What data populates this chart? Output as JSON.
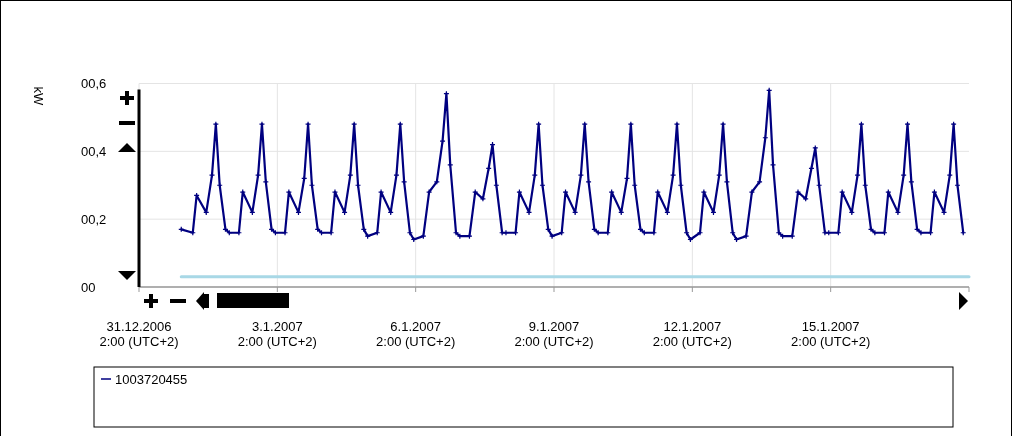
{
  "chart_data": {
    "type": "line",
    "ylabel": "kW",
    "xlim": [
      "2006-12-31T02:00",
      "2007-01-18T02:00"
    ],
    "xticks": [
      {
        "value": "2006-12-31T02:00",
        "label": "31.12.2006\n2:00 (UTC+2)"
      },
      {
        "value": "2007-01-03T02:00",
        "label": "3.1.2007\n2:00 (UTC+2)"
      },
      {
        "value": "2007-01-06T02:00",
        "label": "6.1.2007\n2:00 (UTC+2)"
      },
      {
        "value": "2007-01-09T02:00",
        "label": "9.1.2007\n2:00 (UTC+2)"
      },
      {
        "value": "2007-01-12T02:00",
        "label": "12.1.2007\n2:00 (UTC+2)"
      },
      {
        "value": "2007-01-15T02:00",
        "label": "15.1.2007\n2:00 (UTC+2)"
      }
    ],
    "ylim": [
      0,
      0.6
    ],
    "yticks": [
      {
        "value": 0,
        "label": "00"
      },
      {
        "value": 0.2,
        "label": "00,2"
      },
      {
        "value": 0.4,
        "label": "00,4"
      },
      {
        "value": 0.6,
        "label": "00,6"
      }
    ],
    "grid": true,
    "legend": "bottom",
    "marker": "cross",
    "line_style": "solid",
    "series": [
      {
        "name": "1003720455",
        "color": "#000080",
        "x": [
          "2007-01-01T00:00",
          "2007-01-01T06:00",
          "2007-01-01T08:00",
          "2007-01-01T13:00",
          "2007-01-01T16:00",
          "2007-01-01T18:00",
          "2007-01-01T20:00",
          "2007-01-01T23:00",
          "2007-01-02T01:00",
          "2007-01-02T06:00",
          "2007-01-02T08:00",
          "2007-01-02T13:00",
          "2007-01-02T16:00",
          "2007-01-02T18:00",
          "2007-01-02T20:00",
          "2007-01-02T23:00",
          "2007-01-03T01:00",
          "2007-01-03T06:00",
          "2007-01-03T08:00",
          "2007-01-03T13:00",
          "2007-01-03T16:00",
          "2007-01-03T18:00",
          "2007-01-03T20:00",
          "2007-01-03T23:00",
          "2007-01-04T01:00",
          "2007-01-04T06:00",
          "2007-01-04T08:00",
          "2007-01-04T13:00",
          "2007-01-04T16:00",
          "2007-01-04T18:00",
          "2007-01-04T20:00",
          "2007-01-04T23:00",
          "2007-01-05T01:00",
          "2007-01-05T06:00",
          "2007-01-05T08:00",
          "2007-01-05T13:00",
          "2007-01-05T16:00",
          "2007-01-05T18:00",
          "2007-01-05T20:00",
          "2007-01-05T23:00",
          "2007-01-06T01:00",
          "2007-01-06T06:00",
          "2007-01-06T09:00",
          "2007-01-06T13:00",
          "2007-01-06T16:00",
          "2007-01-06T18:00",
          "2007-01-06T20:00",
          "2007-01-06T23:00",
          "2007-01-07T01:00",
          "2007-01-07T06:00",
          "2007-01-07T09:00",
          "2007-01-07T13:00",
          "2007-01-07T16:00",
          "2007-01-07T18:00",
          "2007-01-07T20:00",
          "2007-01-07T23:00",
          "2007-01-08T01:00",
          "2007-01-08T06:00",
          "2007-01-08T08:00",
          "2007-01-08T13:00",
          "2007-01-08T16:00",
          "2007-01-08T18:00",
          "2007-01-08T20:00",
          "2007-01-08T23:00",
          "2007-01-09T01:00",
          "2007-01-09T06:00",
          "2007-01-09T08:00",
          "2007-01-09T13:00",
          "2007-01-09T16:00",
          "2007-01-09T18:00",
          "2007-01-09T20:00",
          "2007-01-09T23:00",
          "2007-01-10T01:00",
          "2007-01-10T06:00",
          "2007-01-10T08:00",
          "2007-01-10T13:00",
          "2007-01-10T16:00",
          "2007-01-10T18:00",
          "2007-01-10T20:00",
          "2007-01-10T23:00",
          "2007-01-11T01:00",
          "2007-01-11T06:00",
          "2007-01-11T08:00",
          "2007-01-11T13:00",
          "2007-01-11T16:00",
          "2007-01-11T18:00",
          "2007-01-11T20:00",
          "2007-01-11T23:00",
          "2007-01-12T01:00",
          "2007-01-12T06:00",
          "2007-01-12T08:00",
          "2007-01-12T13:00",
          "2007-01-12T16:00",
          "2007-01-12T18:00",
          "2007-01-12T20:00",
          "2007-01-12T23:00",
          "2007-01-13T01:00",
          "2007-01-13T06:00",
          "2007-01-13T09:00",
          "2007-01-13T13:00",
          "2007-01-13T16:00",
          "2007-01-13T18:00",
          "2007-01-13T20:00",
          "2007-01-13T23:00",
          "2007-01-14T01:00",
          "2007-01-14T06:00",
          "2007-01-14T09:00",
          "2007-01-14T13:00",
          "2007-01-14T16:00",
          "2007-01-14T18:00",
          "2007-01-14T20:00",
          "2007-01-14T23:00",
          "2007-01-15T01:00",
          "2007-01-15T06:00",
          "2007-01-15T08:00",
          "2007-01-15T13:00",
          "2007-01-15T16:00",
          "2007-01-15T18:00",
          "2007-01-15T20:00",
          "2007-01-15T23:00",
          "2007-01-16T01:00",
          "2007-01-16T06:00",
          "2007-01-16T08:00",
          "2007-01-16T13:00",
          "2007-01-16T16:00",
          "2007-01-16T18:00",
          "2007-01-16T20:00",
          "2007-01-16T23:00",
          "2007-01-17T01:00",
          "2007-01-17T06:00",
          "2007-01-17T08:00",
          "2007-01-17T13:00",
          "2007-01-17T16:00",
          "2007-01-17T18:00",
          "2007-01-17T20:00",
          "2007-01-17T23:00"
        ],
        "values": [
          0.17,
          0.16,
          0.27,
          0.22,
          0.33,
          0.48,
          0.3,
          0.17,
          0.16,
          0.16,
          0.28,
          0.22,
          0.33,
          0.48,
          0.31,
          0.17,
          0.16,
          0.16,
          0.28,
          0.22,
          0.32,
          0.48,
          0.3,
          0.17,
          0.16,
          0.16,
          0.28,
          0.22,
          0.33,
          0.48,
          0.3,
          0.17,
          0.15,
          0.16,
          0.28,
          0.22,
          0.33,
          0.48,
          0.31,
          0.16,
          0.14,
          0.15,
          0.28,
          0.31,
          0.43,
          0.57,
          0.36,
          0.16,
          0.15,
          0.15,
          0.28,
          0.26,
          0.35,
          0.42,
          0.3,
          0.16,
          0.16,
          0.16,
          0.28,
          0.22,
          0.33,
          0.48,
          0.3,
          0.17,
          0.15,
          0.16,
          0.28,
          0.22,
          0.33,
          0.48,
          0.31,
          0.17,
          0.16,
          0.16,
          0.28,
          0.22,
          0.32,
          0.48,
          0.3,
          0.17,
          0.16,
          0.16,
          0.28,
          0.22,
          0.33,
          0.48,
          0.3,
          0.16,
          0.14,
          0.16,
          0.28,
          0.22,
          0.33,
          0.48,
          0.31,
          0.16,
          0.14,
          0.15,
          0.28,
          0.31,
          0.44,
          0.58,
          0.36,
          0.16,
          0.15,
          0.15,
          0.28,
          0.26,
          0.35,
          0.41,
          0.3,
          0.16,
          0.16,
          0.16,
          0.28,
          0.22,
          0.33,
          0.48,
          0.3,
          0.17,
          0.16,
          0.16,
          0.28,
          0.22,
          0.33,
          0.48,
          0.31,
          0.17,
          0.16,
          0.16,
          0.28,
          0.22,
          0.33,
          0.48,
          0.3,
          0.16
        ]
      },
      {
        "color": "#a8d8e6",
        "marker": "none",
        "x": [
          "2007-01-01T00:00",
          "2007-01-18T02:00"
        ],
        "values": [
          0.03,
          0.03
        ]
      }
    ]
  }
}
